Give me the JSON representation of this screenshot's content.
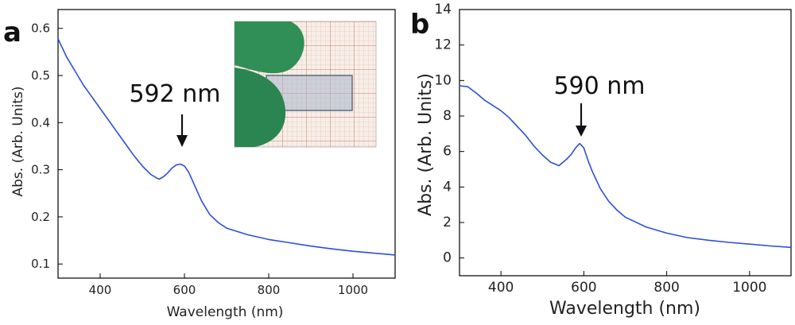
{
  "figure": {
    "panels": [
      {
        "label": "a"
      },
      {
        "label": "b"
      }
    ]
  },
  "colors": {
    "series": "#2d4fd6",
    "axis": "#000000",
    "inset_grid": "#d98a7a",
    "inset_glove": "#2f8f56"
  },
  "chart_data": [
    {
      "type": "line",
      "panel": "a",
      "title": "",
      "xlabel": "Wavelength (nm)",
      "ylabel": "Abs. (Arb. Units)",
      "xlim": [
        300,
        1100
      ],
      "ylim": [
        0.07,
        0.64
      ],
      "xticks": [
        400,
        600,
        800,
        1000
      ],
      "yticks": [
        0.1,
        0.2,
        0.3,
        0.4,
        0.5,
        0.6
      ],
      "ytick_labels": [
        "0.1",
        "0.2",
        "0.3",
        "0.4",
        "0.5",
        "0.6"
      ],
      "series": [
        {
          "name": "absorbance",
          "x": [
            300,
            320,
            340,
            360,
            380,
            400,
            420,
            440,
            460,
            480,
            500,
            520,
            535,
            540,
            550,
            560,
            570,
            580,
            590,
            600,
            610,
            620,
            640,
            660,
            680,
            700,
            750,
            800,
            850,
            900,
            950,
            1000,
            1050,
            1100
          ],
          "y": [
            0.578,
            0.54,
            0.51,
            0.48,
            0.455,
            0.43,
            0.405,
            0.38,
            0.355,
            0.33,
            0.308,
            0.29,
            0.282,
            0.28,
            0.285,
            0.293,
            0.303,
            0.31,
            0.312,
            0.308,
            0.295,
            0.275,
            0.235,
            0.205,
            0.188,
            0.176,
            0.162,
            0.152,
            0.145,
            0.138,
            0.132,
            0.127,
            0.123,
            0.119
          ]
        }
      ],
      "annotations": [
        {
          "text": "592 nm",
          "x": 592,
          "y": 0.312
        }
      ],
      "inset": "photo of a glass slide held by green-gloved fingers over grid paper"
    },
    {
      "type": "line",
      "panel": "b",
      "title": "",
      "xlabel": "Wavelength (nm)",
      "ylabel": "Abs. (Arb. Units)",
      "xlim": [
        300,
        1100
      ],
      "ylim": [
        -1,
        14
      ],
      "xticks": [
        400,
        600,
        800,
        1000
      ],
      "yticks": [
        0,
        2,
        4,
        6,
        8,
        10,
        12,
        14
      ],
      "ytick_labels": [
        "0",
        "2",
        "4",
        "6",
        "8",
        "10",
        "12",
        "14"
      ],
      "series": [
        {
          "name": "absorbance",
          "x": [
            300,
            320,
            340,
            360,
            380,
            400,
            420,
            440,
            460,
            480,
            500,
            520,
            540,
            550,
            560,
            570,
            580,
            590,
            600,
            610,
            620,
            640,
            660,
            680,
            700,
            750,
            800,
            850,
            900,
            950,
            1000,
            1050,
            1100
          ],
          "y": [
            9.7,
            9.65,
            9.3,
            8.9,
            8.6,
            8.3,
            7.9,
            7.4,
            6.9,
            6.3,
            5.8,
            5.4,
            5.2,
            5.4,
            5.6,
            5.85,
            6.2,
            6.45,
            6.2,
            5.5,
            4.9,
            3.9,
            3.2,
            2.7,
            2.3,
            1.75,
            1.4,
            1.15,
            1.0,
            0.88,
            0.78,
            0.68,
            0.6
          ]
        }
      ],
      "annotations": [
        {
          "text": "590 nm",
          "x": 590,
          "y": 6.45
        }
      ]
    }
  ]
}
